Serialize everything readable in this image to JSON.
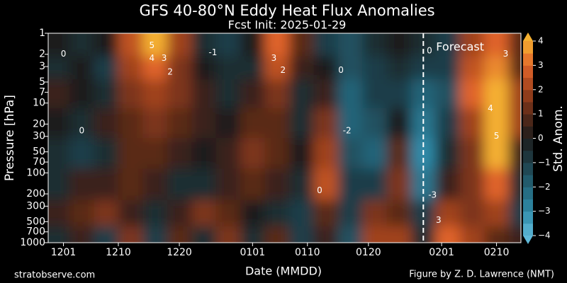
{
  "chart_data": {
    "type": "contour",
    "title": "GFS 40-80°N Eddy Heat Flux Anomalies",
    "subtitle": "Fcst Init: 2025-01-29",
    "x_label": "Date (MMDD)",
    "y_label": "Pressure [hPa]",
    "colorbar_label": "Std. Anom.",
    "source": "stratobserve.com",
    "credit": "Figure by Z. D. Lawrence (NMT)",
    "xlim": [
      -2.5,
      75
    ],
    "xticks": [
      {
        "value": 0,
        "label": "1201"
      },
      {
        "value": 9,
        "label": "1210"
      },
      {
        "value": 19,
        "label": "1220"
      },
      {
        "value": 31,
        "label": "0101"
      },
      {
        "value": 40,
        "label": "0110"
      },
      {
        "value": 50,
        "label": "0120"
      },
      {
        "value": 62,
        "label": "0201"
      },
      {
        "value": 71,
        "label": "0210"
      }
    ],
    "ylim": [
      1000,
      1
    ],
    "y_log": true,
    "yticks": [
      1,
      2,
      3,
      5,
      7,
      10,
      20,
      30,
      50,
      70,
      100,
      200,
      300,
      500,
      700,
      1000
    ],
    "colorbar_lim": [
      -4,
      4
    ],
    "colorbar_ticks": [
      {
        "value": -4,
        "label": "−4"
      },
      {
        "value": -3,
        "label": "−3"
      },
      {
        "value": -2,
        "label": "−2"
      },
      {
        "value": -1,
        "label": "−1"
      },
      0,
      1,
      2,
      3,
      4
    ],
    "cmap": [
      "#5fb8d8",
      "#2f8aa8",
      "#236478",
      "#1f3e48",
      "#1c1c1c",
      "#5a2a18",
      "#a0421c",
      "#e0642a",
      "#f5b030"
    ],
    "forecast_x": 59,
    "forecast_label": "Forecast",
    "x": [
      -1,
      3,
      7,
      11,
      15,
      19,
      23,
      27,
      31,
      35,
      39,
      43,
      47,
      51,
      55,
      59,
      63,
      67,
      71,
      75
    ],
    "y": [
      1.5,
      3,
      7,
      20,
      50,
      150,
      400,
      850
    ],
    "z": [
      [
        0,
        -0.5,
        0.5,
        0,
        -0.5,
        -0.5,
        0.5,
        -0.5
      ],
      [
        -0.5,
        0,
        0,
        -0.5,
        -1,
        0.5,
        1,
        0.5
      ],
      [
        0,
        -1,
        -0.5,
        0.5,
        -0.5,
        0.5,
        1.5,
        -1
      ],
      [
        2.5,
        2,
        1.5,
        1,
        1,
        1,
        0.5,
        1.5
      ],
      [
        4.5,
        3,
        2,
        1.5,
        1,
        0.5,
        -0.5,
        -1
      ],
      [
        2,
        1.5,
        1.5,
        1,
        0.5,
        -0.5,
        0.5,
        1
      ],
      [
        -0.5,
        0,
        0.5,
        0.5,
        0,
        -0.5,
        1.5,
        -0.5
      ],
      [
        -1,
        -0.5,
        -0.5,
        0,
        0.5,
        0.5,
        1,
        1.5
      ],
      [
        0,
        -0.5,
        0.5,
        1,
        1.5,
        1,
        0,
        -0.5
      ],
      [
        3,
        2.5,
        1.5,
        1,
        1,
        0.5,
        -0.5,
        1
      ],
      [
        1,
        0.5,
        -0.5,
        -0.5,
        0,
        -0.5,
        -1,
        -1
      ],
      [
        -1,
        0,
        0.5,
        1.5,
        2,
        2.5,
        1,
        0.5
      ],
      [
        -1.5,
        -1.5,
        -2,
        -2,
        -1.5,
        -1,
        -1,
        -1.5
      ],
      [
        -0.5,
        -1,
        -1,
        -1.5,
        -2,
        -1,
        1.5,
        2
      ],
      [
        0,
        -0.5,
        -1,
        0,
        1,
        1.5,
        1,
        2
      ],
      [
        -0.5,
        -1,
        -2,
        -2.5,
        -3,
        -2.5,
        -1,
        -0.5
      ],
      [
        -1,
        -1,
        -1.5,
        -1,
        -0.5,
        0.5,
        2,
        3
      ],
      [
        2,
        2.5,
        3,
        2,
        1.5,
        1.5,
        1.5,
        2
      ],
      [
        3,
        3.5,
        4,
        5,
        4.5,
        3,
        2,
        1
      ],
      [
        1,
        1,
        2,
        2,
        0.5,
        -0.5,
        -1,
        0.5
      ]
    ],
    "contour_labels": [
      {
        "x": 14.5,
        "y": 1.5,
        "value": 5
      },
      {
        "x": 14.5,
        "y": 2.3,
        "value": 4
      },
      {
        "x": 16.5,
        "y": 2.3,
        "value": 3
      },
      {
        "x": 17.5,
        "y": 3.6,
        "value": 2
      },
      {
        "x": 0,
        "y": 2,
        "value": 0
      },
      {
        "x": 34.5,
        "y": 2.3,
        "value": 3
      },
      {
        "x": 36,
        "y": 3.4,
        "value": 2
      },
      {
        "x": 24.5,
        "y": 1.9,
        "value": -1
      },
      {
        "x": 45.5,
        "y": 3.4,
        "value": 0
      },
      {
        "x": 60,
        "y": 1.8,
        "value": 0
      },
      {
        "x": 72.5,
        "y": 2,
        "value": 3
      },
      {
        "x": 70,
        "y": 12,
        "value": 4
      },
      {
        "x": 71,
        "y": 30,
        "value": 5
      },
      {
        "x": 60.5,
        "y": 210,
        "value": -3
      },
      {
        "x": 61.5,
        "y": 480,
        "value": 3
      },
      {
        "x": 42,
        "y": 180,
        "value": 0
      },
      {
        "x": 3,
        "y": 25,
        "value": 0
      },
      {
        "x": 46.5,
        "y": 25,
        "value": -2
      }
    ]
  }
}
